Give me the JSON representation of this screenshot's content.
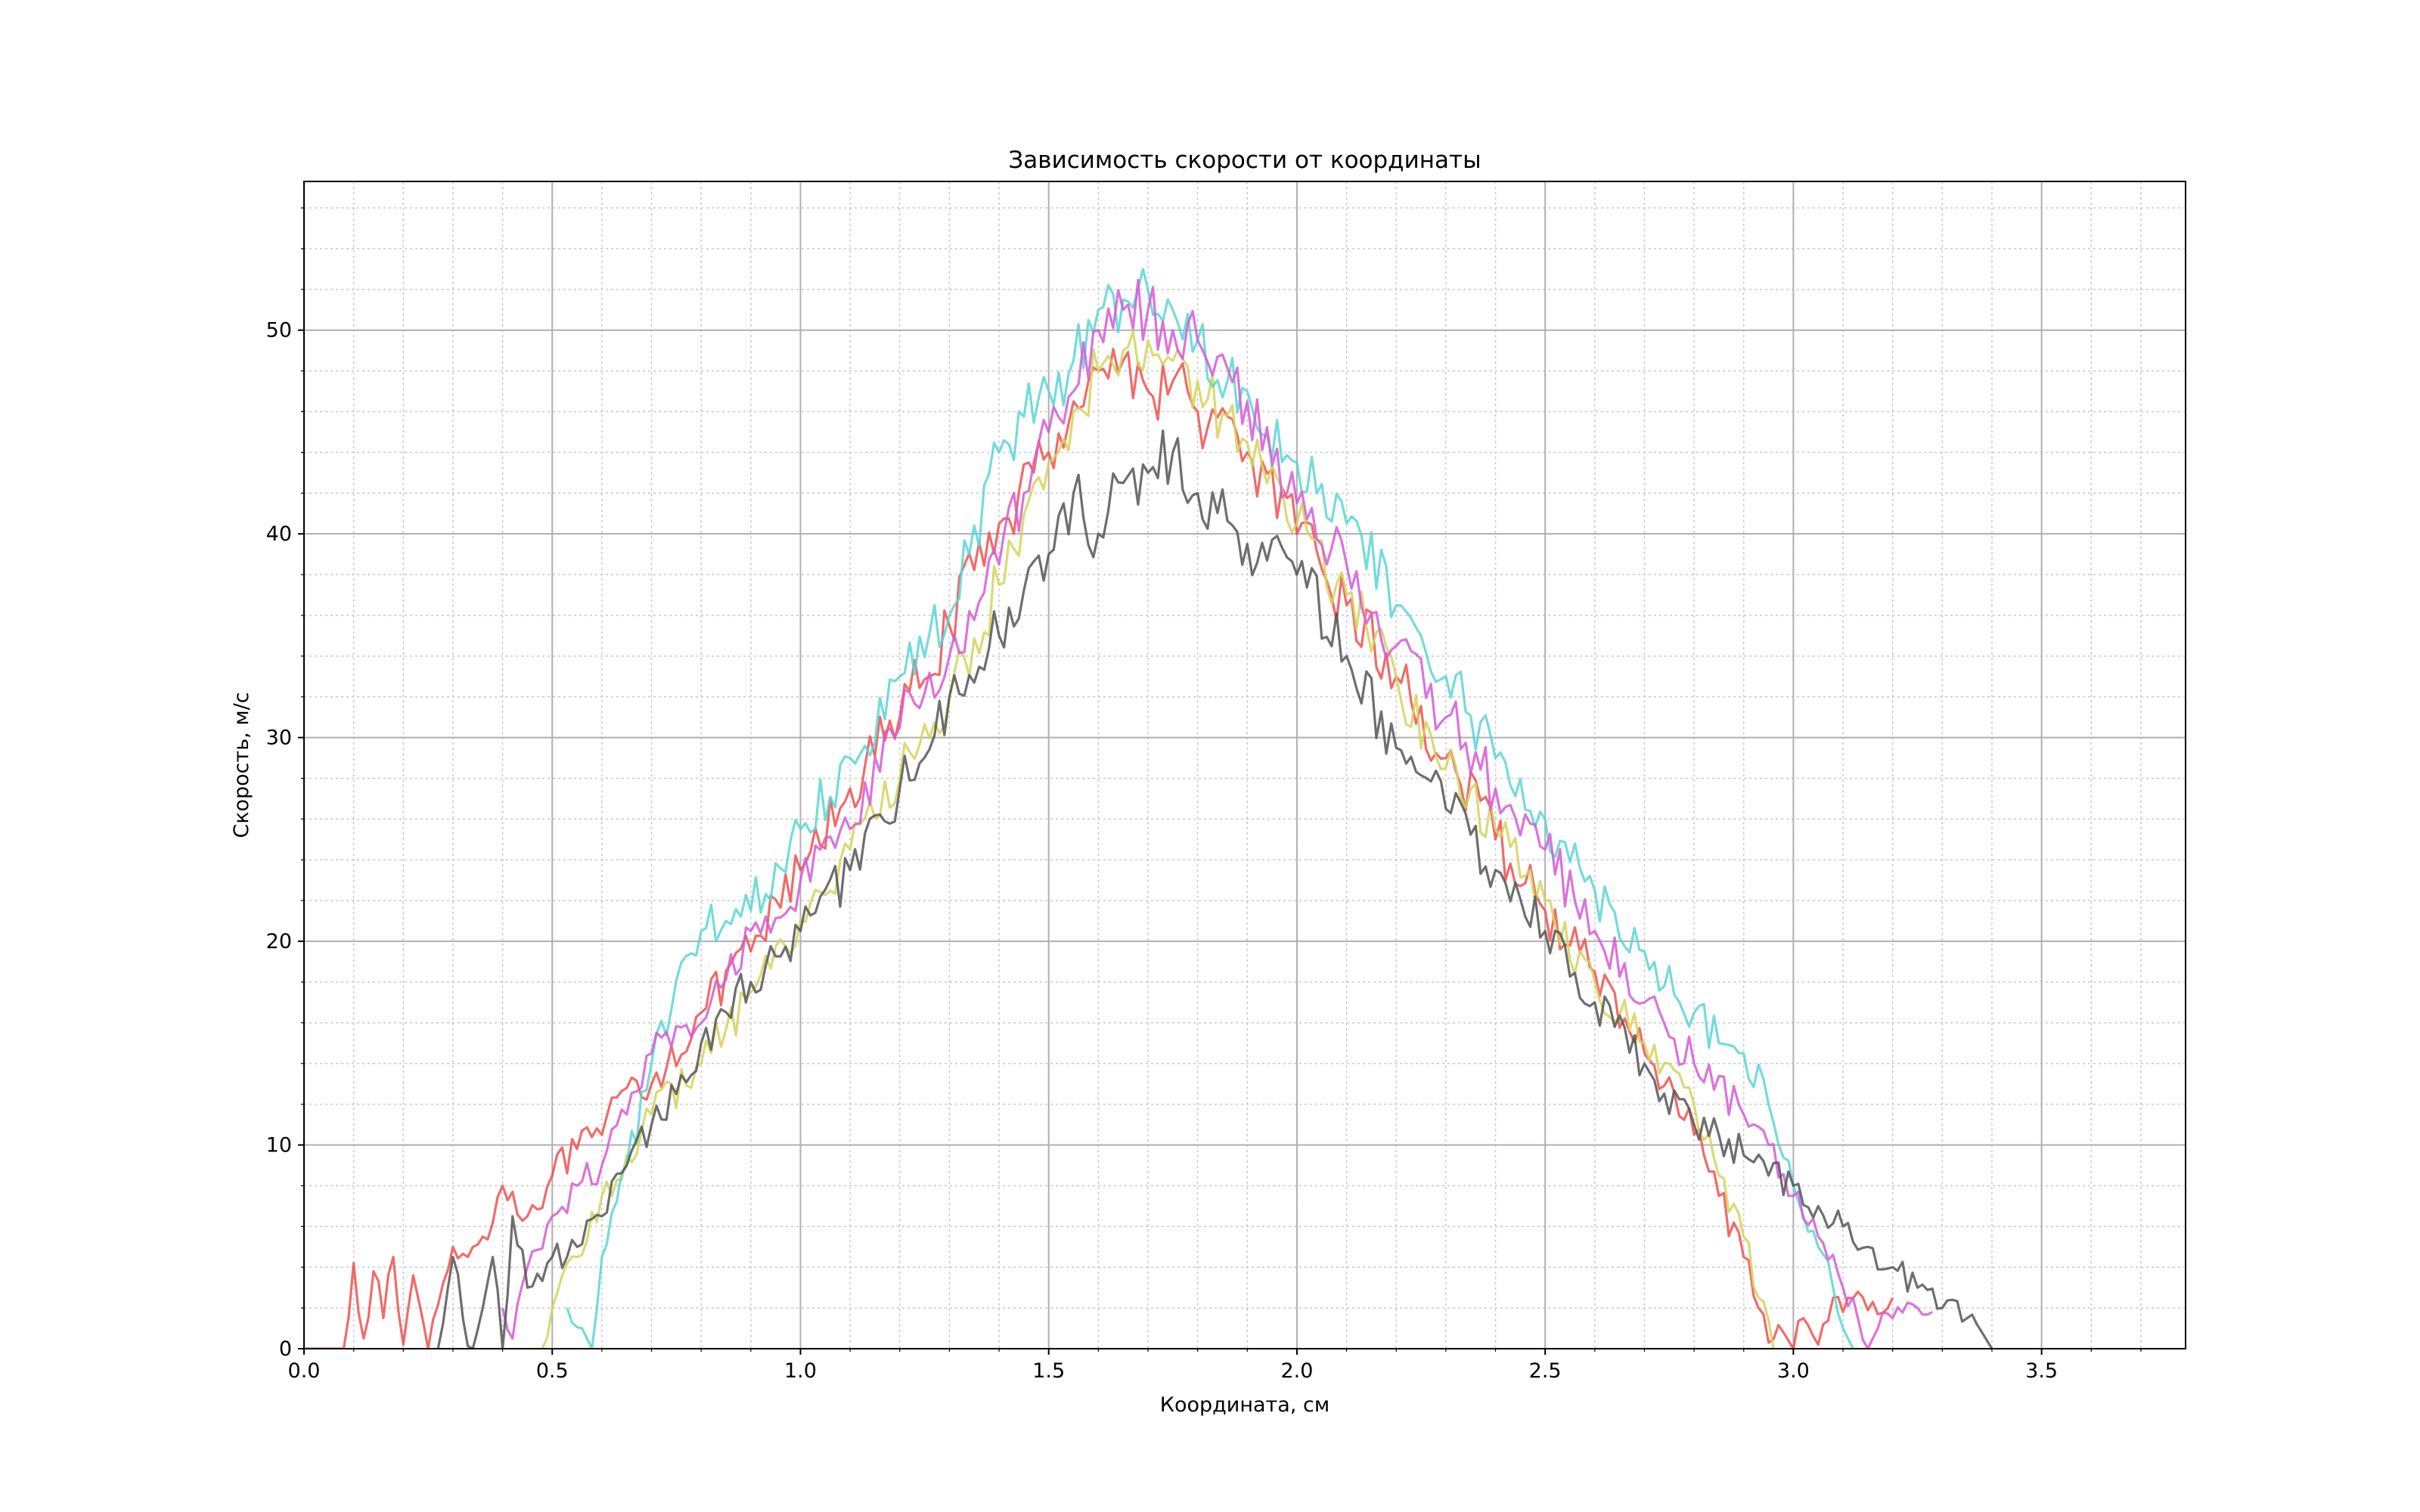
{
  "chart_data": {
    "type": "line",
    "title": "Зависимость скорости от координаты",
    "xlabel": "Координата, см",
    "ylabel": "Скорость, м/с",
    "xlim": [
      0.0,
      3.79
    ],
    "ylim": [
      0,
      57.3
    ],
    "xticks": [
      0.0,
      0.5,
      1.0,
      1.5,
      2.0,
      2.5,
      3.0,
      3.5
    ],
    "xtick_labels": [
      "0.0",
      "0.5",
      "1.0",
      "1.5",
      "2.0",
      "2.5",
      "3.0",
      "3.5"
    ],
    "yticks": [
      0,
      10,
      20,
      30,
      40,
      50
    ],
    "ytick_labels": [
      "0",
      "10",
      "20",
      "30",
      "40",
      "50"
    ],
    "xminor_step": 0.1,
    "yminor_step": 2,
    "grid": true,
    "legend": "none",
    "series": [
      {
        "name": "red",
        "color": "#f05050",
        "x": [
          0.0,
          0.08,
          0.1,
          0.12,
          0.14,
          0.16,
          0.18,
          0.2,
          0.22,
          0.25,
          0.28,
          0.3,
          0.33,
          0.36,
          0.4,
          0.45,
          0.5,
          0.55,
          0.6,
          0.65,
          0.7,
          0.8,
          0.9,
          1.0,
          1.1,
          1.2,
          1.3,
          1.4,
          1.5,
          1.55,
          1.6,
          1.65,
          1.7,
          1.75,
          1.8,
          1.9,
          2.0,
          2.1,
          2.2,
          2.3,
          2.4,
          2.5,
          2.6,
          2.7,
          2.8,
          2.85,
          2.9,
          2.93,
          2.95,
          2.98,
          3.0,
          3.02,
          3.05,
          3.08,
          3.1,
          3.13,
          3.16,
          3.2
        ],
        "y": [
          0,
          0,
          4.2,
          0.5,
          3.8,
          1.5,
          4.5,
          0.2,
          3.6,
          0,
          3.2,
          5.0,
          4.5,
          5.5,
          8.0,
          6.5,
          8.5,
          9.8,
          10.5,
          12.8,
          13.0,
          16.5,
          19.5,
          23.5,
          27.5,
          31.0,
          35.5,
          40.5,
          44.0,
          46.5,
          48.0,
          48.5,
          47.0,
          47.5,
          46.0,
          44.0,
          40.0,
          36.5,
          33.0,
          29.0,
          25.0,
          21.5,
          18.5,
          14.5,
          10.5,
          7.5,
          4.5,
          2.0,
          0.3,
          0.8,
          0,
          1.5,
          0.2,
          2.5,
          1.8,
          2.8,
          2.3,
          2.5
        ]
      },
      {
        "name": "olive",
        "color": "#d4d45a",
        "x": [
          0.48,
          0.5,
          0.55,
          0.6,
          0.65,
          0.7,
          0.8,
          0.9,
          1.0,
          1.1,
          1.2,
          1.3,
          1.4,
          1.5,
          1.55,
          1.6,
          1.65,
          1.7,
          1.75,
          1.8,
          1.9,
          2.0,
          2.1,
          2.2,
          2.3,
          2.4,
          2.5,
          2.6,
          2.7,
          2.8,
          2.85,
          2.9,
          2.93,
          2.96
        ],
        "y": [
          0,
          2.0,
          4.5,
          7.5,
          9.5,
          11.5,
          14.0,
          17.5,
          21.0,
          24.5,
          28.0,
          32.0,
          37.5,
          43.5,
          46.0,
          48.0,
          49.0,
          49.5,
          48.5,
          47.5,
          44.5,
          40.5,
          37.0,
          33.0,
          28.5,
          25.5,
          22.0,
          18.0,
          15.0,
          12.0,
          8.5,
          5.5,
          2.5,
          0
        ]
      },
      {
        "name": "cyan",
        "color": "#5ad5d5",
        "x": [
          0.53,
          0.56,
          0.58,
          0.6,
          0.65,
          0.7,
          0.8,
          0.9,
          1.0,
          1.1,
          1.2,
          1.3,
          1.4,
          1.5,
          1.55,
          1.6,
          1.65,
          1.7,
          1.75,
          1.8,
          1.9,
          2.0,
          2.1,
          2.2,
          2.3,
          2.4,
          2.5,
          2.6,
          2.7,
          2.8,
          2.85,
          2.9,
          2.95,
          3.0,
          3.05,
          3.08,
          3.1,
          3.12
        ],
        "y": [
          2.0,
          1.0,
          0,
          4.5,
          9.0,
          14.0,
          20.5,
          21.5,
          25.5,
          29.0,
          33.0,
          36.0,
          44.0,
          47.0,
          48.5,
          51.0,
          51.5,
          52.0,
          51.0,
          49.5,
          47.0,
          43.5,
          40.5,
          36.5,
          33.0,
          29.0,
          26.0,
          22.5,
          19.5,
          16.5,
          15.0,
          14.5,
          12.0,
          8.0,
          5.0,
          3.0,
          1.0,
          0
        ]
      },
      {
        "name": "magenta",
        "color": "#d55ad5",
        "x": [
          0.4,
          0.42,
          0.45,
          0.5,
          0.55,
          0.6,
          0.65,
          0.7,
          0.8,
          0.9,
          1.0,
          1.1,
          1.2,
          1.3,
          1.4,
          1.5,
          1.55,
          1.6,
          1.65,
          1.7,
          1.75,
          1.8,
          1.9,
          2.0,
          2.1,
          2.2,
          2.3,
          2.4,
          2.5,
          2.6,
          2.7,
          2.8,
          2.9,
          2.95,
          3.0,
          3.05,
          3.1,
          3.13,
          3.15,
          3.17,
          3.2,
          3.25,
          3.28
        ],
        "y": [
          2.0,
          0.5,
          4.0,
          6.5,
          8.0,
          9.0,
          11.5,
          14.5,
          16.0,
          20.5,
          23.0,
          25.5,
          30.5,
          34.0,
          38.5,
          45.0,
          47.0,
          50.0,
          51.0,
          51.0,
          50.0,
          49.5,
          46.5,
          41.5,
          38.5,
          34.5,
          31.0,
          27.5,
          24.5,
          20.5,
          17.0,
          14.0,
          11.5,
          10.0,
          7.5,
          5.5,
          3.0,
          1.5,
          0,
          1.0,
          1.5,
          2.0,
          1.8
        ]
      },
      {
        "name": "gray",
        "color": "#555555",
        "x": [
          0.27,
          0.3,
          0.32,
          0.34,
          0.36,
          0.38,
          0.4,
          0.42,
          0.45,
          0.5,
          0.55,
          0.6,
          0.65,
          0.7,
          0.75,
          0.8,
          0.9,
          1.0,
          1.1,
          1.2,
          1.3,
          1.4,
          1.5,
          1.55,
          1.6,
          1.65,
          1.7,
          1.75,
          1.8,
          1.9,
          2.0,
          2.1,
          2.2,
          2.3,
          2.4,
          2.5,
          2.6,
          2.7,
          2.8,
          2.85,
          2.9,
          2.95,
          3.0,
          3.05,
          3.1,
          3.15,
          3.2,
          3.25,
          3.3,
          3.35,
          3.38,
          3.4
        ],
        "y": [
          0,
          4.5,
          1.5,
          0,
          2.0,
          4.5,
          0,
          6.5,
          3.0,
          4.5,
          5.0,
          6.5,
          9.0,
          11.0,
          12.5,
          15.0,
          18.0,
          20.5,
          23.5,
          27.5,
          32.0,
          35.0,
          39.0,
          42.0,
          40.0,
          42.5,
          43.0,
          44.0,
          42.0,
          39.5,
          38.0,
          34.0,
          29.5,
          26.5,
          23.5,
          20.5,
          17.0,
          14.0,
          11.0,
          10.5,
          9.5,
          8.5,
          8.0,
          7.0,
          6.0,
          5.0,
          4.0,
          3.0,
          2.0,
          1.5,
          0.8,
          0
        ]
      }
    ]
  }
}
